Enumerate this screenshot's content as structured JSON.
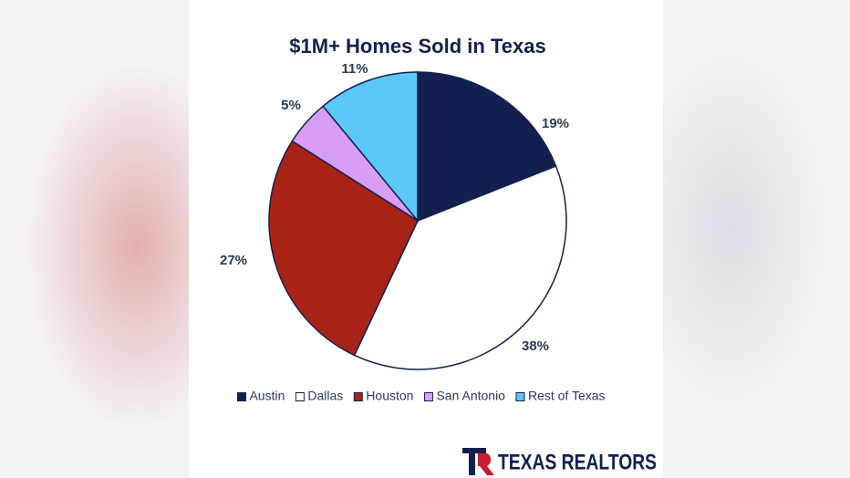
{
  "chart_data": {
    "type": "pie",
    "title": "$1M+ Homes Sold in Texas",
    "categories": [
      "Austin",
      "Dallas",
      "Houston",
      "San Antonio",
      "Rest of Texas"
    ],
    "values": [
      19,
      38,
      27,
      5,
      11
    ],
    "value_labels": [
      "19%",
      "38%",
      "27%",
      "5%",
      "11%"
    ],
    "colors": [
      "#13204f",
      "#ffffff",
      "#a82315",
      "#d89ef5",
      "#5bc8f8"
    ],
    "legend": "bottom"
  },
  "logo": "TEXAS REALTORS"
}
